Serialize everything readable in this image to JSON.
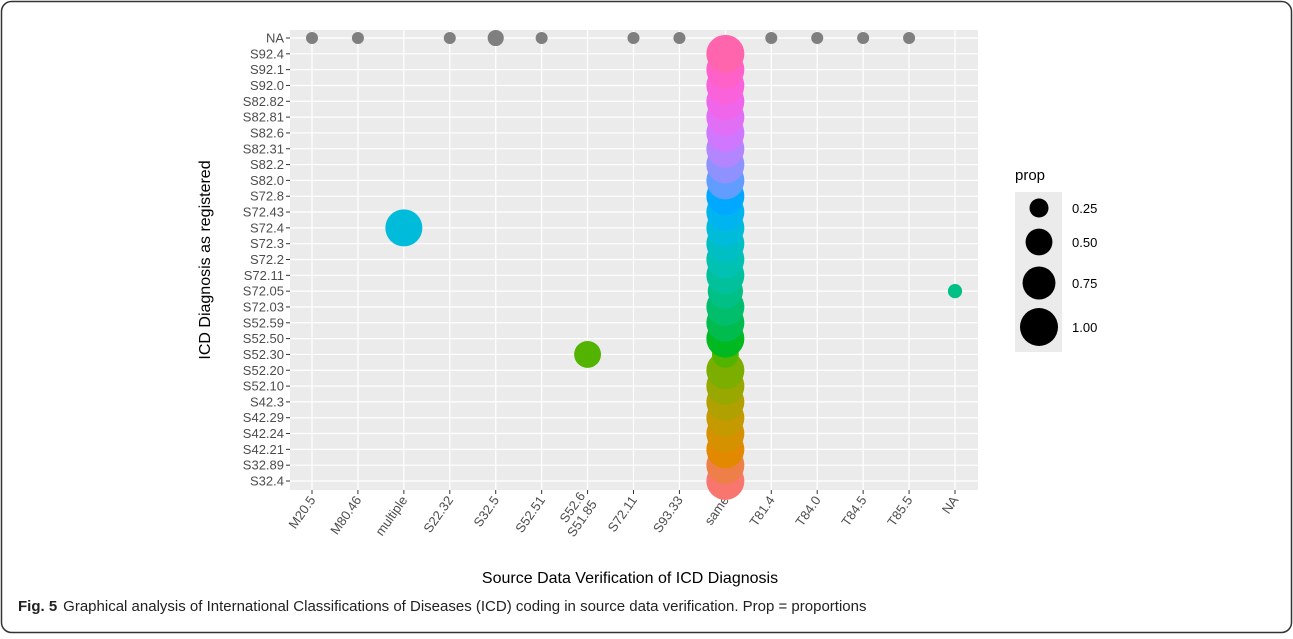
{
  "chart_data": {
    "type": "bubble",
    "xlabel": "Source Data Verification of ICD Diagnosis",
    "ylabel": "ICD Diagnosis as registered",
    "x_categories": [
      "M20.5",
      "M80.46",
      "multiple",
      "S22.32",
      "S32.5",
      "S52.51",
      "S52.6\nS51.85",
      "S72.11",
      "S93.33",
      "same",
      "T81.4",
      "T84.0",
      "T84.5",
      "T85.5",
      "NA"
    ],
    "y_categories": [
      "S32.4",
      "S32.89",
      "S42.21",
      "S42.24",
      "S42.29",
      "S42.3",
      "S52.10",
      "S52.20",
      "S52.30",
      "S52.50",
      "S52.59",
      "S72.03",
      "S72.05",
      "S72.11",
      "S72.2",
      "S72.3",
      "S72.4",
      "S72.43",
      "S72.8",
      "S82.0",
      "S82.2",
      "S82.31",
      "S82.6",
      "S82.81",
      "S82.82",
      "S92.0",
      "S92.1",
      "S92.4",
      "NA"
    ],
    "y_colors": [
      "#F8766D",
      "#EF7F49",
      "#E38900",
      "#D59100",
      "#C49A00",
      "#B0A100",
      "#99A800",
      "#7CAE00",
      "#53B400",
      "#00B81F",
      "#00BB4E",
      "#00BE6C",
      "#00C085",
      "#00C19C",
      "#00C1B2",
      "#00BFC4",
      "#00BBDA",
      "#00B4EF",
      "#00A9FF",
      "#619CFF",
      "#8F91FF",
      "#B385FF",
      "#CF78FF",
      "#E36EF6",
      "#F066EA",
      "#FA62DB",
      "#FF61C9",
      "#FF65AC",
      "#7F7F7F"
    ],
    "points": [
      {
        "x": "M20.5",
        "y": "NA",
        "size": 0.1
      },
      {
        "x": "M80.46",
        "y": "NA",
        "size": 0.1
      },
      {
        "x": "S22.32",
        "y": "NA",
        "size": 0.1
      },
      {
        "x": "S32.5",
        "y": "NA",
        "size": 0.18
      },
      {
        "x": "S52.51",
        "y": "NA",
        "size": 0.1
      },
      {
        "x": "S72.11",
        "y": "NA",
        "size": 0.1
      },
      {
        "x": "S93.33",
        "y": "NA",
        "size": 0.1
      },
      {
        "x": "T81.4",
        "y": "NA",
        "size": 0.1
      },
      {
        "x": "T84.0",
        "y": "NA",
        "size": 0.1
      },
      {
        "x": "T84.5",
        "y": "NA",
        "size": 0.1
      },
      {
        "x": "T85.5",
        "y": "NA",
        "size": 0.1
      },
      {
        "x": "multiple",
        "y": "S72.4",
        "size": 0.95
      },
      {
        "x": "S52.6\nS51.85",
        "y": "S52.30",
        "size": 0.5
      },
      {
        "x": "NA",
        "y": "S72.05",
        "size": 0.14
      },
      {
        "x": "same",
        "y": "S32.4",
        "size": 1
      },
      {
        "x": "same",
        "y": "S32.89",
        "size": 1
      },
      {
        "x": "same",
        "y": "S42.21",
        "size": 1
      },
      {
        "x": "same",
        "y": "S42.24",
        "size": 1
      },
      {
        "x": "same",
        "y": "S42.29",
        "size": 1
      },
      {
        "x": "same",
        "y": "S42.3",
        "size": 1
      },
      {
        "x": "same",
        "y": "S52.10",
        "size": 1
      },
      {
        "x": "same",
        "y": "S52.20",
        "size": 1
      },
      {
        "x": "same",
        "y": "S52.30",
        "size": 0.5
      },
      {
        "x": "same",
        "y": "S52.50",
        "size": 1
      },
      {
        "x": "same",
        "y": "S52.59",
        "size": 1
      },
      {
        "x": "same",
        "y": "S72.03",
        "size": 1
      },
      {
        "x": "same",
        "y": "S72.05",
        "size": 0.86
      },
      {
        "x": "same",
        "y": "S72.11",
        "size": 1
      },
      {
        "x": "same",
        "y": "S72.2",
        "size": 1
      },
      {
        "x": "same",
        "y": "S72.3",
        "size": 1
      },
      {
        "x": "same",
        "y": "S72.4",
        "size": 1
      },
      {
        "x": "same",
        "y": "S72.43",
        "size": 1
      },
      {
        "x": "same",
        "y": "S72.8",
        "size": 1
      },
      {
        "x": "same",
        "y": "S82.0",
        "size": 1
      },
      {
        "x": "same",
        "y": "S82.2",
        "size": 1
      },
      {
        "x": "same",
        "y": "S82.31",
        "size": 1
      },
      {
        "x": "same",
        "y": "S82.6",
        "size": 1
      },
      {
        "x": "same",
        "y": "S82.81",
        "size": 1
      },
      {
        "x": "same",
        "y": "S82.82",
        "size": 1
      },
      {
        "x": "same",
        "y": "S92.0",
        "size": 1
      },
      {
        "x": "same",
        "y": "S92.1",
        "size": 1
      },
      {
        "x": "same",
        "y": "S92.4",
        "size": 1
      }
    ],
    "size_legend": {
      "title": "prop",
      "values": [
        0.25,
        0.5,
        0.75,
        1
      ],
      "value_labels": [
        "0.25",
        "0.50",
        "0.75",
        "1.00"
      ]
    },
    "grid": true
  },
  "caption": {
    "label": "Fig. 5",
    "text": "Graphical analysis of International Classifications of Diseases (ICD) coding in source data verification. Prop = proportions"
  }
}
